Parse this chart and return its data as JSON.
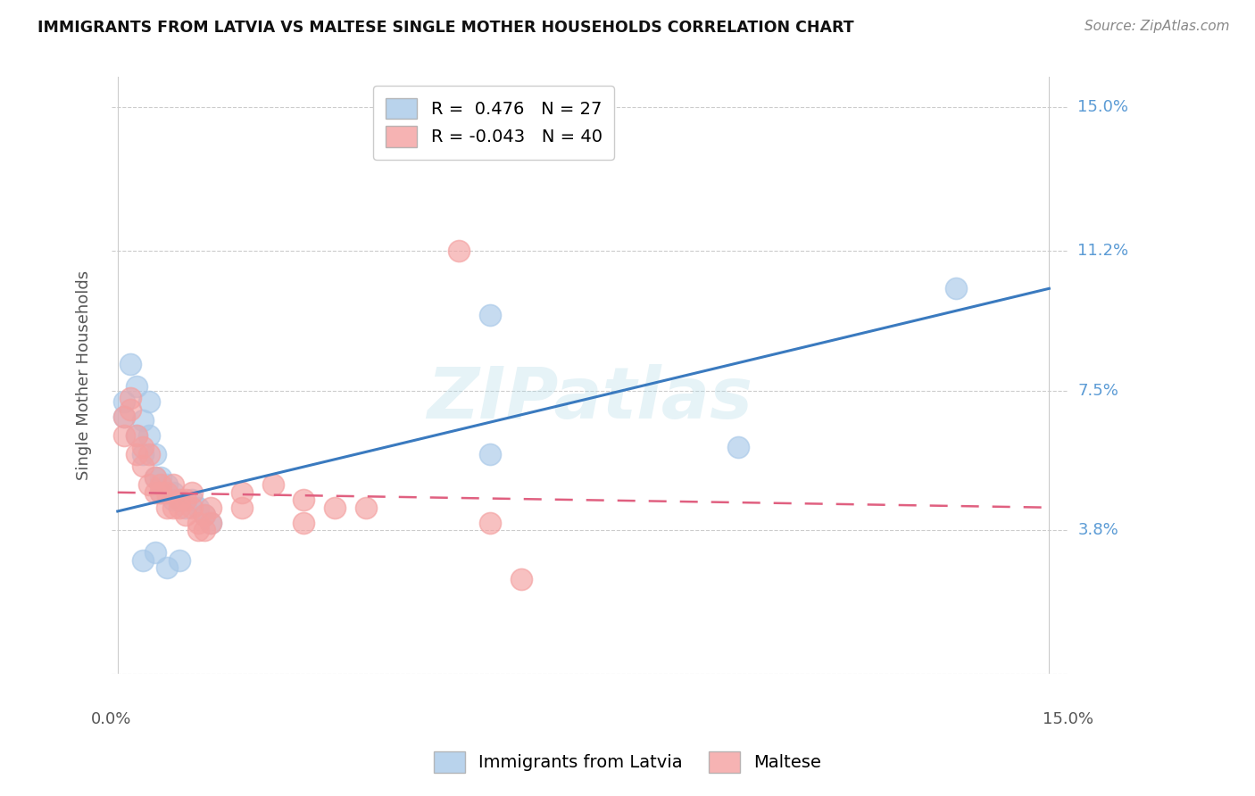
{
  "title": "IMMIGRANTS FROM LATVIA VS MALTESE SINGLE MOTHER HOUSEHOLDS CORRELATION CHART",
  "source": "Source: ZipAtlas.com",
  "ylabel": "Single Mother Households",
  "y_ticks": [
    0.0,
    0.038,
    0.075,
    0.112,
    0.15
  ],
  "y_tick_labels": [
    "",
    "3.8%",
    "7.5%",
    "11.2%",
    "15.0%"
  ],
  "x_lim": [
    -0.001,
    0.153
  ],
  "y_lim": [
    0.0,
    0.158
  ],
  "color_blue": "#a8c8e8",
  "color_pink": "#f4a0a0",
  "color_blue_line": "#3a7abf",
  "color_pink_line": "#e06080",
  "watermark_text": "ZIPatlas",
  "latvia_points": [
    [
      0.001,
      0.072
    ],
    [
      0.001,
      0.068
    ],
    [
      0.002,
      0.082
    ],
    [
      0.003,
      0.076
    ],
    [
      0.003,
      0.063
    ],
    [
      0.004,
      0.067
    ],
    [
      0.004,
      0.058
    ],
    [
      0.005,
      0.072
    ],
    [
      0.005,
      0.063
    ],
    [
      0.006,
      0.058
    ],
    [
      0.006,
      0.052
    ],
    [
      0.007,
      0.052
    ],
    [
      0.007,
      0.048
    ],
    [
      0.008,
      0.05
    ],
    [
      0.009,
      0.048
    ],
    [
      0.009,
      0.046
    ],
    [
      0.01,
      0.046
    ],
    [
      0.011,
      0.044
    ],
    [
      0.012,
      0.046
    ],
    [
      0.013,
      0.044
    ],
    [
      0.014,
      0.042
    ],
    [
      0.015,
      0.04
    ],
    [
      0.06,
      0.095
    ],
    [
      0.06,
      0.058
    ],
    [
      0.1,
      0.06
    ],
    [
      0.135,
      0.102
    ],
    [
      0.004,
      0.03
    ],
    [
      0.006,
      0.032
    ],
    [
      0.008,
      0.028
    ],
    [
      0.01,
      0.03
    ]
  ],
  "maltese_points": [
    [
      0.001,
      0.068
    ],
    [
      0.001,
      0.063
    ],
    [
      0.002,
      0.073
    ],
    [
      0.002,
      0.07
    ],
    [
      0.003,
      0.063
    ],
    [
      0.003,
      0.058
    ],
    [
      0.004,
      0.06
    ],
    [
      0.004,
      0.055
    ],
    [
      0.005,
      0.058
    ],
    [
      0.005,
      0.05
    ],
    [
      0.006,
      0.052
    ],
    [
      0.006,
      0.048
    ],
    [
      0.007,
      0.05
    ],
    [
      0.007,
      0.048
    ],
    [
      0.008,
      0.048
    ],
    [
      0.008,
      0.044
    ],
    [
      0.009,
      0.05
    ],
    [
      0.009,
      0.044
    ],
    [
      0.01,
      0.046
    ],
    [
      0.01,
      0.044
    ],
    [
      0.011,
      0.046
    ],
    [
      0.011,
      0.042
    ],
    [
      0.012,
      0.048
    ],
    [
      0.012,
      0.044
    ],
    [
      0.013,
      0.04
    ],
    [
      0.013,
      0.038
    ],
    [
      0.014,
      0.042
    ],
    [
      0.014,
      0.038
    ],
    [
      0.015,
      0.044
    ],
    [
      0.015,
      0.04
    ],
    [
      0.02,
      0.048
    ],
    [
      0.02,
      0.044
    ],
    [
      0.025,
      0.05
    ],
    [
      0.03,
      0.046
    ],
    [
      0.03,
      0.04
    ],
    [
      0.035,
      0.044
    ],
    [
      0.04,
      0.044
    ],
    [
      0.055,
      0.112
    ],
    [
      0.06,
      0.04
    ],
    [
      0.065,
      0.025
    ]
  ],
  "latvia_line_x": [
    0.0,
    0.15
  ],
  "latvia_line_y": [
    0.043,
    0.102
  ],
  "maltese_line_x": [
    0.0,
    0.15
  ],
  "maltese_line_y": [
    0.048,
    0.044
  ]
}
